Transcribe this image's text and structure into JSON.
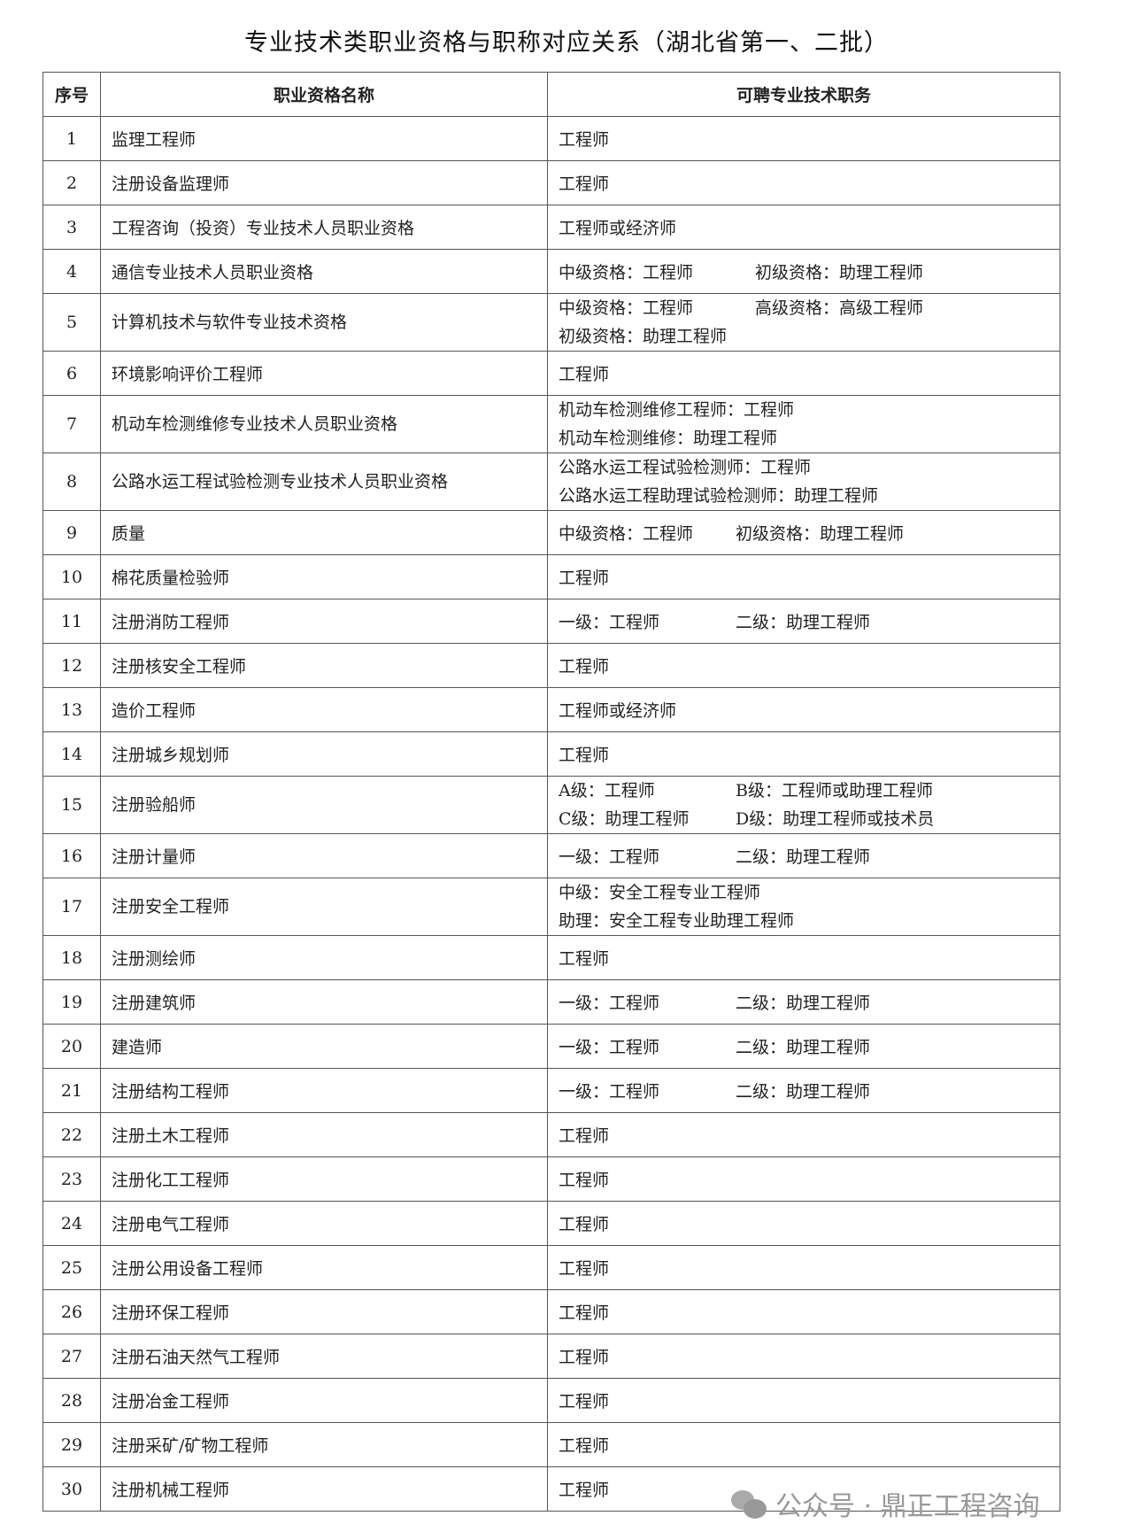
{
  "title": "专业技术类职业资格与职称对应关系（湖北省第一、二批）",
  "headers": [
    "序号",
    "职业资格名称",
    "可聘专业技术职务"
  ],
  "rows": [
    {
      "no": "1",
      "name": "监理工程师",
      "duty": [
        [
          "工程师"
        ]
      ]
    },
    {
      "no": "2",
      "name": "注册设备监理师",
      "duty": [
        [
          "工程师"
        ]
      ]
    },
    {
      "no": "3",
      "name": "工程咨询（投资）专业技术人员职业资格",
      "duty": [
        [
          "工程师或经济师"
        ]
      ]
    },
    {
      "no": "4",
      "name": "通信专业技术人员职业资格",
      "duty": [
        [
          "中级资格：工程师",
          "初级资格：助理工程师"
        ]
      ]
    },
    {
      "no": "5",
      "name": "计算机技术与软件专业技术资格",
      "duty": [
        [
          "中级资格：工程师",
          "高级资格：高级工程师"
        ],
        [
          "初级资格：助理工程师"
        ]
      ]
    },
    {
      "no": "6",
      "name": "环境影响评价工程师",
      "duty": [
        [
          "工程师"
        ]
      ]
    },
    {
      "no": "7",
      "name": "机动车检测维修专业技术人员职业资格",
      "duty": [
        [
          "机动车检测维修工程师：工程师"
        ],
        [
          "机动车检测维修：助理工程师"
        ]
      ]
    },
    {
      "no": "8",
      "name": "公路水运工程试验检测专业技术人员职业资格",
      "duty": [
        [
          "公路水运工程试验检测师：工程师"
        ],
        [
          "公路水运工程助理试验检测师：助理工程师"
        ]
      ]
    },
    {
      "no": "9",
      "name": "质量",
      "duty": [
        [
          "中级资格：工程师",
          "初级资格：助理工程师"
        ]
      ]
    },
    {
      "no": "10",
      "name": "棉花质量检验师",
      "duty": [
        [
          "工程师"
        ]
      ]
    },
    {
      "no": "11",
      "name": "注册消防工程师",
      "duty": [
        [
          "一级：工程师",
          "二级：助理工程师"
        ]
      ]
    },
    {
      "no": "12",
      "name": "注册核安全工程师",
      "duty": [
        [
          "工程师"
        ]
      ]
    },
    {
      "no": "13",
      "name": "造价工程师",
      "duty": [
        [
          "工程师或经济师"
        ]
      ]
    },
    {
      "no": "14",
      "name": "注册城乡规划师",
      "duty": [
        [
          "工程师"
        ]
      ]
    },
    {
      "no": "15",
      "name": "注册验船师",
      "duty": [
        [
          "A级：工程师",
          "B级：工程师或助理工程师"
        ],
        [
          "C级：助理工程师",
          "D级：助理工程师或技术员"
        ]
      ]
    },
    {
      "no": "16",
      "name": "注册计量师",
      "duty": [
        [
          "一级：工程师",
          "二级：助理工程师"
        ]
      ]
    },
    {
      "no": "17",
      "name": "注册安全工程师",
      "duty": [
        [
          "中级：安全工程专业工程师"
        ],
        [
          "助理：安全工程专业助理工程师"
        ]
      ]
    },
    {
      "no": "18",
      "name": "注册测绘师",
      "duty": [
        [
          "工程师"
        ]
      ]
    },
    {
      "no": "19",
      "name": "注册建筑师",
      "duty": [
        [
          "一级：工程师",
          "二级：助理工程师"
        ]
      ]
    },
    {
      "no": "20",
      "name": "建造师",
      "duty": [
        [
          "一级：工程师",
          "二级：助理工程师"
        ]
      ]
    },
    {
      "no": "21",
      "name": "注册结构工程师",
      "duty": [
        [
          "一级：工程师",
          "二级：助理工程师"
        ]
      ]
    },
    {
      "no": "22",
      "name": "注册土木工程师",
      "duty": [
        [
          "工程师"
        ]
      ]
    },
    {
      "no": "23",
      "name": "注册化工工程师",
      "duty": [
        [
          "工程师"
        ]
      ]
    },
    {
      "no": "24",
      "name": "注册电气工程师",
      "duty": [
        [
          "工程师"
        ]
      ]
    },
    {
      "no": "25",
      "name": "注册公用设备工程师",
      "duty": [
        [
          "工程师"
        ]
      ]
    },
    {
      "no": "26",
      "name": "注册环保工程师",
      "duty": [
        [
          "工程师"
        ]
      ]
    },
    {
      "no": "27",
      "name": "注册石油天然气工程师",
      "duty": [
        [
          "工程师"
        ]
      ]
    },
    {
      "no": "28",
      "name": "注册冶金工程师",
      "duty": [
        [
          "工程师"
        ]
      ]
    },
    {
      "no": "29",
      "name": "注册采矿/矿物工程师",
      "duty": [
        [
          "工程师"
        ]
      ]
    },
    {
      "no": "30",
      "name": "注册机械工程师",
      "duty": [
        [
          "工程师"
        ]
      ]
    }
  ],
  "watermark": {
    "text": "公众号 · 鼎正工程咨询",
    "icon": "wechat-icon"
  }
}
